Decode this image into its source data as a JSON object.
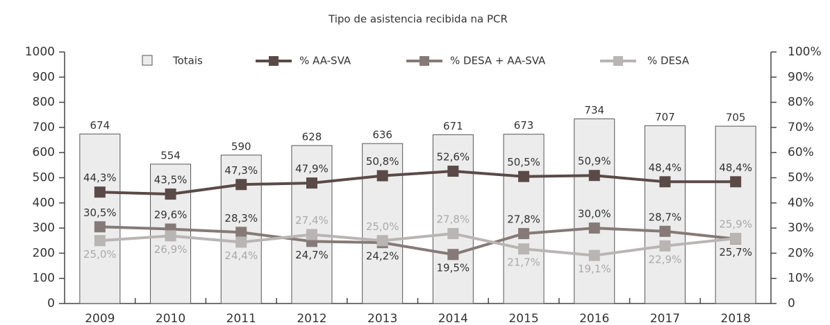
{
  "chart_data": {
    "type": "bar",
    "title": "Tipo de asistencia recibida na PCR",
    "categories": [
      "2009",
      "2010",
      "2011",
      "2012",
      "2013",
      "2014",
      "2015",
      "2016",
      "2017",
      "2018"
    ],
    "ylim": [
      0,
      1000
    ],
    "yticks": [
      0,
      100,
      200,
      300,
      400,
      500,
      600,
      700,
      800,
      900,
      1000
    ],
    "y2lim": [
      0,
      100
    ],
    "y2ticks": [
      0,
      {
        "value": 10,
        "label": "10%"
      },
      {
        "value": 20,
        "label": "20%"
      },
      {
        "value": 30,
        "label": "30%"
      },
      {
        "value": 40,
        "label": "40%"
      },
      {
        "value": 50,
        "label": "50%"
      },
      {
        "value": 60,
        "label": "60%"
      },
      {
        "value": 70,
        "label": "70%"
      },
      {
        "value": 80,
        "label": "80%"
      },
      {
        "value": 90,
        "label": "90%"
      },
      {
        "value": 100,
        "label": "100%"
      }
    ],
    "series": [
      {
        "name": "Totais",
        "type": "bar",
        "color": "#ececec",
        "values": [
          674,
          554,
          590,
          628,
          636,
          671,
          673,
          734,
          707,
          705
        ]
      },
      {
        "name": "% AA-SVA",
        "type": "line",
        "axis": "y2",
        "color": "#5a4a47",
        "values": [
          44.3,
          43.5,
          47.3,
          47.9,
          50.8,
          52.6,
          50.5,
          50.9,
          48.4,
          48.4
        ],
        "value_labels": [
          "44,3%",
          "43,5%",
          "47,3%",
          "47,9%",
          "50,8%",
          "52,6%",
          "50,5%",
          "50,9%",
          "48,4%",
          "48,4%"
        ]
      },
      {
        "name": "% DESA + AA-SVA",
        "type": "line",
        "axis": "y2",
        "color": "#857a77",
        "values": [
          30.5,
          29.6,
          28.3,
          24.7,
          24.2,
          19.5,
          27.8,
          30.0,
          28.7,
          25.7
        ],
        "value_labels": [
          "30,5%",
          "29,6%",
          "28,3%",
          "24,7%",
          "24,2%",
          "19,5%",
          "27,8%",
          "30,0%",
          "28,7%",
          "25,7%"
        ]
      },
      {
        "name": "% DESA",
        "type": "line",
        "axis": "y2",
        "color": "#b8b5b4",
        "values": [
          25.0,
          26.9,
          24.4,
          27.4,
          25.0,
          27.8,
          21.7,
          19.1,
          22.9,
          25.9
        ],
        "value_labels": [
          "25,0%",
          "26,9%",
          "24,4%",
          "27,4%",
          "25,0%",
          "27,8%",
          "21,7%",
          "19,1%",
          "22,9%",
          "25,9%"
        ]
      }
    ]
  }
}
